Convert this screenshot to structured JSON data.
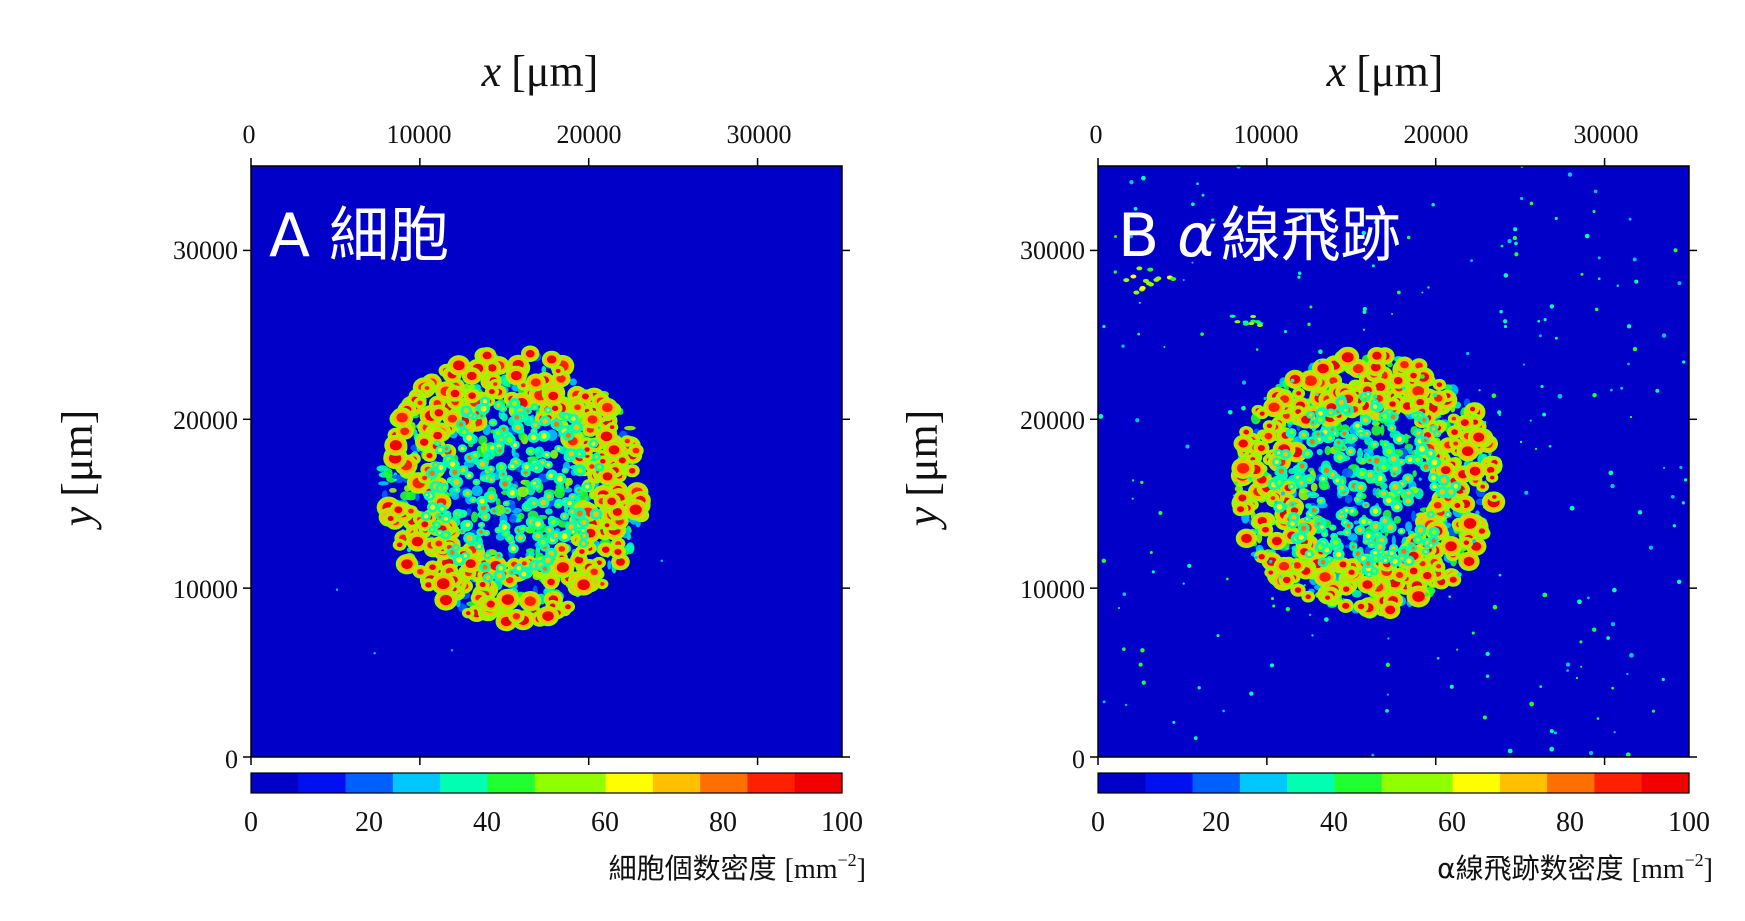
{
  "colors": {
    "background": "#0000c8",
    "frame": "#000000",
    "panel_label": "#ffffff",
    "colormap": [
      "#0000c8",
      "#0010f0",
      "#0060ff",
      "#00c8ff",
      "#00ffb0",
      "#20ff30",
      "#90ff00",
      "#ffff00",
      "#ffc000",
      "#ff7000",
      "#ff2000",
      "#f00000"
    ]
  },
  "chart_data": [
    {
      "type": "heatmap",
      "panel_label": "A 細胞",
      "xlabel_var": "x",
      "xlabel_unit": "[μm]",
      "ylabel_var": "y",
      "ylabel_unit": "[μm]",
      "x_ticks": [
        "0",
        "10000",
        "20000",
        "30000"
      ],
      "y_ticks": [
        "0",
        "10000",
        "20000",
        "30000"
      ],
      "xlim": [
        0,
        35000
      ],
      "ylim": [
        0,
        35000
      ],
      "colorbar_ticks": [
        "0",
        "20",
        "40",
        "60",
        "80",
        "100"
      ],
      "colorbar_range": [
        0,
        100
      ],
      "colorbar_label": "細胞個数密度",
      "colorbar_unit_base": "[mm",
      "colorbar_unit_exp": "−2",
      "colorbar_unit_close": "]",
      "cluster": {
        "center_x": 15500,
        "center_y": 16000,
        "radius_x": 7800,
        "radius_y": 8000
      },
      "background_scatter": "none"
    },
    {
      "type": "heatmap",
      "panel_label_prefix": "B",
      "panel_label_greek": "α",
      "panel_label_suffix": "線飛跡",
      "xlabel_var": "x",
      "xlabel_unit": "[μm]",
      "ylabel_var": "y",
      "ylabel_unit": "[μm]",
      "x_ticks": [
        "0",
        "10000",
        "20000",
        "30000"
      ],
      "y_ticks": [
        "0",
        "10000",
        "20000",
        "30000"
      ],
      "xlim": [
        0,
        35000
      ],
      "ylim": [
        0,
        35000
      ],
      "colorbar_ticks": [
        "0",
        "20",
        "40",
        "60",
        "80",
        "100"
      ],
      "colorbar_range": [
        0,
        100
      ],
      "colorbar_label": "α線飛跡数密度",
      "colorbar_unit_base": "[mm",
      "colorbar_unit_exp": "−2",
      "colorbar_unit_close": "]",
      "cluster": {
        "center_x": 15800,
        "center_y": 16200,
        "radius_x": 7800,
        "radius_y": 7700
      },
      "background_scatter": "sparse"
    }
  ]
}
